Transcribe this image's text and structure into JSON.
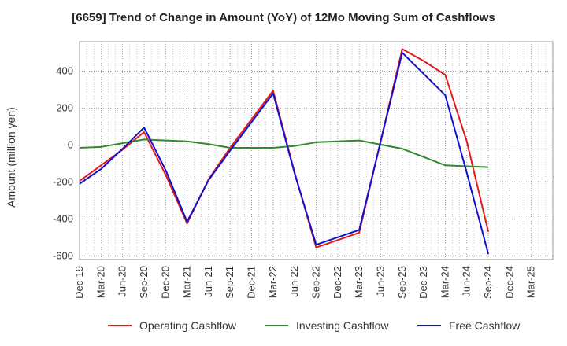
{
  "chart_data": {
    "type": "line",
    "title": "[6659]  Trend of Change in Amount (YoY) of 12Mo Moving Sum of Cashflows",
    "xlabel": "",
    "ylabel": "Amount (million yen)",
    "ylim": [
      -620,
      560
    ],
    "yticks": [
      -600,
      -400,
      -200,
      0,
      200,
      400
    ],
    "ytick_labels": [
      "-600",
      "-400",
      "-200",
      "0",
      "200",
      "400"
    ],
    "categories": [
      "Dec-19",
      "Mar-20",
      "Jun-20",
      "Sep-20",
      "Dec-20",
      "Mar-21",
      "Jun-21",
      "Sep-21",
      "Dec-21",
      "Mar-22",
      "Jun-22",
      "Sep-22",
      "Dec-22",
      "Mar-23",
      "Jun-23",
      "Sep-23",
      "Dec-23",
      "Mar-24",
      "Jun-24",
      "Sep-24",
      "Dec-24",
      "Mar-25"
    ],
    "grid": true,
    "legend_position": "bottom",
    "series": [
      {
        "name": "Operating Cashflow",
        "color": "#e31a1c",
        "values": [
          -195,
          -110,
          -25,
          70,
          -160,
          -425,
          -185,
          -15,
          140,
          295,
          -150,
          -555,
          -515,
          -475,
          null,
          520,
          455,
          380,
          20,
          -470,
          null,
          null
        ]
      },
      {
        "name": "Investing Cashflow",
        "color": "#2e8b2e",
        "values": [
          -15,
          -10,
          10,
          30,
          25,
          20,
          5,
          -15,
          -15,
          -15,
          -5,
          15,
          20,
          25,
          null,
          -20,
          -65,
          -110,
          -115,
          -120,
          null,
          null
        ]
      },
      {
        "name": "Free Cashflow",
        "color": "#1010d0",
        "values": [
          -210,
          -130,
          -20,
          95,
          -135,
          -415,
          -190,
          -30,
          125,
          280,
          -155,
          -540,
          -500,
          -460,
          null,
          500,
          385,
          270,
          -150,
          -590,
          null,
          null
        ]
      }
    ]
  }
}
